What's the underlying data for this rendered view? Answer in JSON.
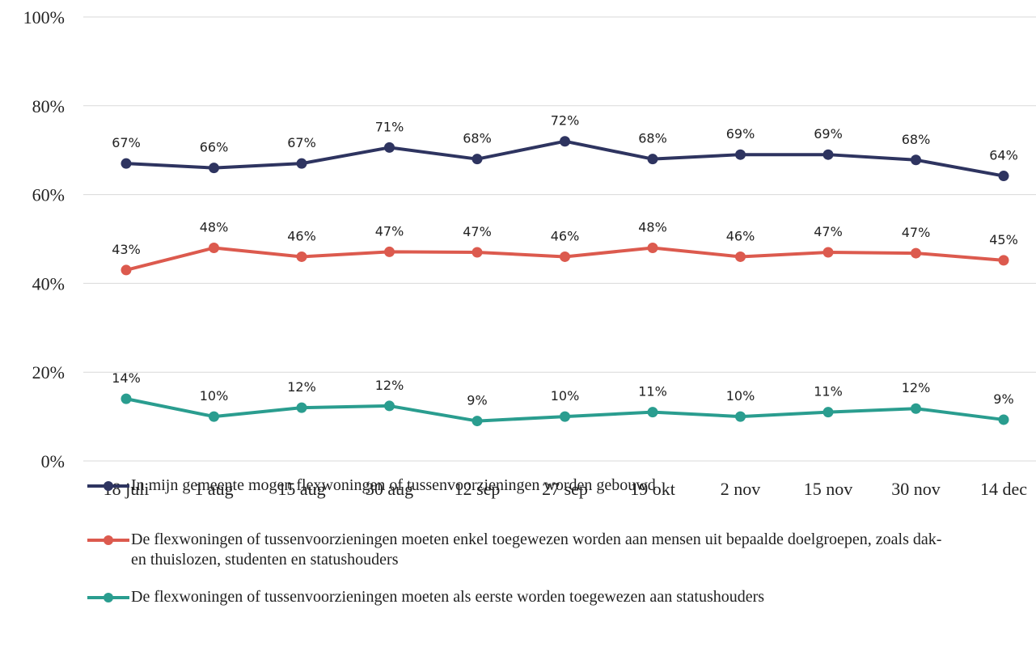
{
  "chart_data": {
    "type": "line",
    "categories": [
      "18 juli",
      "1 aug",
      "15 aug",
      "30 aug",
      "12 sep",
      "27 sep",
      "19 okt",
      "2 nov",
      "15 nov",
      "30 nov",
      "14 dec"
    ],
    "ylim": [
      0,
      100
    ],
    "yticks": [
      {
        "value": 0,
        "label": "0%"
      },
      {
        "value": 20,
        "label": "20%"
      },
      {
        "value": 40,
        "label": "40%"
      },
      {
        "value": 60,
        "label": "60%"
      },
      {
        "value": 80,
        "label": "80%"
      },
      {
        "value": 100,
        "label": "100%"
      }
    ],
    "grid": true,
    "series": [
      {
        "name": "In mijn gemeente mogen flexwoningen of tussenvoorzieningen worden gebouwd",
        "color": "#2e3460",
        "values": [
          67,
          66,
          67,
          70.6,
          68,
          72,
          68,
          69,
          69,
          67.8,
          64.2
        ],
        "value_labels": [
          "67%",
          "66%",
          "67%",
          "71%",
          "68%",
          "72%",
          "68%",
          "69%",
          "69%",
          "68%",
          "64%"
        ]
      },
      {
        "name": "De flexwoningen of tussenvoorzieningen moeten enkel toegewezen worden aan mensen uit bepaalde doelgroepen, zoals dak- en thuislozen, studenten en statushouders",
        "color": "#dc5a4e",
        "values": [
          43,
          48,
          46,
          47.1,
          47,
          46,
          48,
          46,
          47,
          46.8,
          45.2
        ],
        "value_labels": [
          "43%",
          "48%",
          "46%",
          "47%",
          "47%",
          "46%",
          "48%",
          "46%",
          "47%",
          "47%",
          "45%"
        ]
      },
      {
        "name": "De flexwoningen of tussenvoorzieningen moeten als eerste worden toegewezen aan statushouders",
        "color": "#2a9d8f",
        "values": [
          14,
          10,
          12,
          12.4,
          9,
          10,
          11,
          10,
          11,
          11.8,
          9.3
        ],
        "value_labels": [
          "14%",
          "10%",
          "12%",
          "12%",
          "9%",
          "10%",
          "11%",
          "10%",
          "11%",
          "12%",
          "9%"
        ]
      }
    ]
  }
}
